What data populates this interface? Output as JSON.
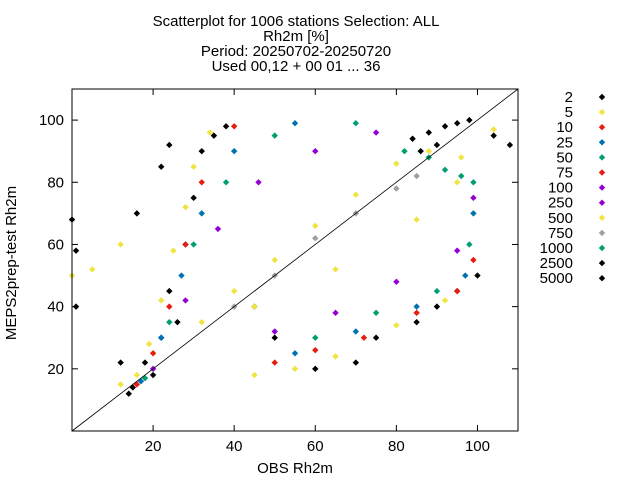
{
  "chart_data": {
    "type": "scatter",
    "title_lines": [
      "Scatterplot for 1006 stations Selection: ALL",
      "Rh2m [%]",
      "Period: 20250702-20250720",
      "Used 00,12 + 00 01 ... 36"
    ],
    "xlabel": "OBS Rh2m",
    "ylabel": "MEPS2prep-test Rh2m",
    "xlim": [
      0,
      110
    ],
    "ylim": [
      0,
      110
    ],
    "xticks": [
      20,
      40,
      60,
      80,
      100
    ],
    "yticks": [
      20,
      40,
      60,
      80,
      100
    ],
    "diagonal": true,
    "legend_position": "right-outside",
    "legend": [
      {
        "label": "2",
        "color": "#000000"
      },
      {
        "label": "5",
        "color": "#f0e442"
      },
      {
        "label": "10",
        "color": "#e51e10"
      },
      {
        "label": "25",
        "color": "#0072b2"
      },
      {
        "label": "50",
        "color": "#009e73"
      },
      {
        "label": "75",
        "color": "#e51e10"
      },
      {
        "label": "100",
        "color": "#9400d3"
      },
      {
        "label": "250",
        "color": "#9400d3"
      },
      {
        "label": "500",
        "color": "#f0e442"
      },
      {
        "label": "750",
        "color": "#a0a0a0"
      },
      {
        "label": "1000",
        "color": "#009e73"
      },
      {
        "label": "2500",
        "color": "#000000"
      },
      {
        "label": "5000",
        "color": "#000000"
      }
    ],
    "density_bands": [
      {
        "class": "2",
        "color": "#000000",
        "points": [
          [
            14,
            12
          ],
          [
            15,
            14
          ],
          [
            18,
            22
          ],
          [
            20,
            18
          ],
          [
            22,
            30
          ],
          [
            24,
            45
          ],
          [
            26,
            35
          ],
          [
            28,
            60
          ],
          [
            30,
            75
          ],
          [
            32,
            90
          ],
          [
            35,
            95
          ],
          [
            38,
            98
          ],
          [
            45,
            40
          ],
          [
            50,
            30
          ],
          [
            60,
            20
          ],
          [
            70,
            22
          ],
          [
            75,
            30
          ],
          [
            85,
            35
          ],
          [
            90,
            40
          ],
          [
            95,
            45
          ],
          [
            100,
            50
          ],
          [
            104,
            95
          ],
          [
            108,
            92
          ],
          [
            0,
            68
          ],
          [
            1,
            40
          ],
          [
            1,
            58
          ],
          [
            12,
            22
          ],
          [
            16,
            70
          ],
          [
            22,
            85
          ],
          [
            24,
            92
          ]
        ]
      },
      {
        "class": "5",
        "color": "#f0e442",
        "points": [
          [
            12,
            15
          ],
          [
            16,
            18
          ],
          [
            19,
            28
          ],
          [
            22,
            42
          ],
          [
            25,
            58
          ],
          [
            28,
            72
          ],
          [
            30,
            85
          ],
          [
            34,
            96
          ],
          [
            45,
            18
          ],
          [
            55,
            20
          ],
          [
            65,
            24
          ],
          [
            80,
            34
          ],
          [
            92,
            42
          ],
          [
            0,
            50
          ],
          [
            5,
            52
          ],
          [
            12,
            60
          ],
          [
            104,
            97
          ],
          [
            96,
            88
          ]
        ]
      },
      {
        "class": "10",
        "color": "#e51e10",
        "points": [
          [
            16,
            15
          ],
          [
            20,
            25
          ],
          [
            24,
            40
          ],
          [
            28,
            60
          ],
          [
            32,
            80
          ],
          [
            40,
            98
          ],
          [
            50,
            22
          ],
          [
            60,
            26
          ],
          [
            72,
            30
          ],
          [
            85,
            38
          ],
          [
            95,
            45
          ],
          [
            99,
            55
          ]
        ]
      },
      {
        "class": "25",
        "color": "#0072b2",
        "points": [
          [
            17,
            16
          ],
          [
            22,
            30
          ],
          [
            27,
            50
          ],
          [
            32,
            70
          ],
          [
            40,
            90
          ],
          [
            55,
            99
          ],
          [
            55,
            25
          ],
          [
            70,
            32
          ],
          [
            85,
            40
          ],
          [
            97,
            50
          ],
          [
            99,
            70
          ]
        ]
      },
      {
        "class": "50",
        "color": "#009e73",
        "points": [
          [
            18,
            17
          ],
          [
            24,
            35
          ],
          [
            30,
            60
          ],
          [
            38,
            80
          ],
          [
            50,
            95
          ],
          [
            70,
            99
          ],
          [
            60,
            30
          ],
          [
            75,
            38
          ],
          [
            90,
            45
          ],
          [
            98,
            60
          ],
          [
            99,
            80
          ]
        ]
      },
      {
        "class": "100",
        "color": "#9400d3",
        "points": [
          [
            20,
            20
          ],
          [
            28,
            42
          ],
          [
            36,
            65
          ],
          [
            46,
            80
          ],
          [
            60,
            90
          ],
          [
            75,
            96
          ],
          [
            50,
            32
          ],
          [
            65,
            38
          ],
          [
            80,
            48
          ],
          [
            95,
            58
          ],
          [
            99,
            75
          ]
        ]
      },
      {
        "class": "500",
        "color": "#f0e442",
        "points": [
          [
            32,
            35
          ],
          [
            40,
            45
          ],
          [
            50,
            55
          ],
          [
            60,
            66
          ],
          [
            70,
            76
          ],
          [
            80,
            86
          ],
          [
            88,
            90
          ],
          [
            45,
            40
          ],
          [
            65,
            52
          ],
          [
            85,
            68
          ],
          [
            95,
            80
          ]
        ]
      },
      {
        "class": "750",
        "color": "#a0a0a0",
        "points": [
          [
            40,
            40
          ],
          [
            50,
            50
          ],
          [
            60,
            62
          ],
          [
            70,
            70
          ],
          [
            80,
            78
          ],
          [
            85,
            82
          ]
        ]
      },
      {
        "class": "1000",
        "color": "#009e73",
        "points": [
          [
            82,
            90
          ],
          [
            88,
            88
          ],
          [
            92,
            84
          ],
          [
            96,
            82
          ]
        ]
      },
      {
        "class": "5000",
        "color": "#000000",
        "points": [
          [
            84,
            94
          ],
          [
            88,
            96
          ],
          [
            92,
            98
          ],
          [
            95,
            99
          ],
          [
            98,
            100
          ],
          [
            90,
            92
          ],
          [
            86,
            90
          ]
        ]
      }
    ]
  }
}
